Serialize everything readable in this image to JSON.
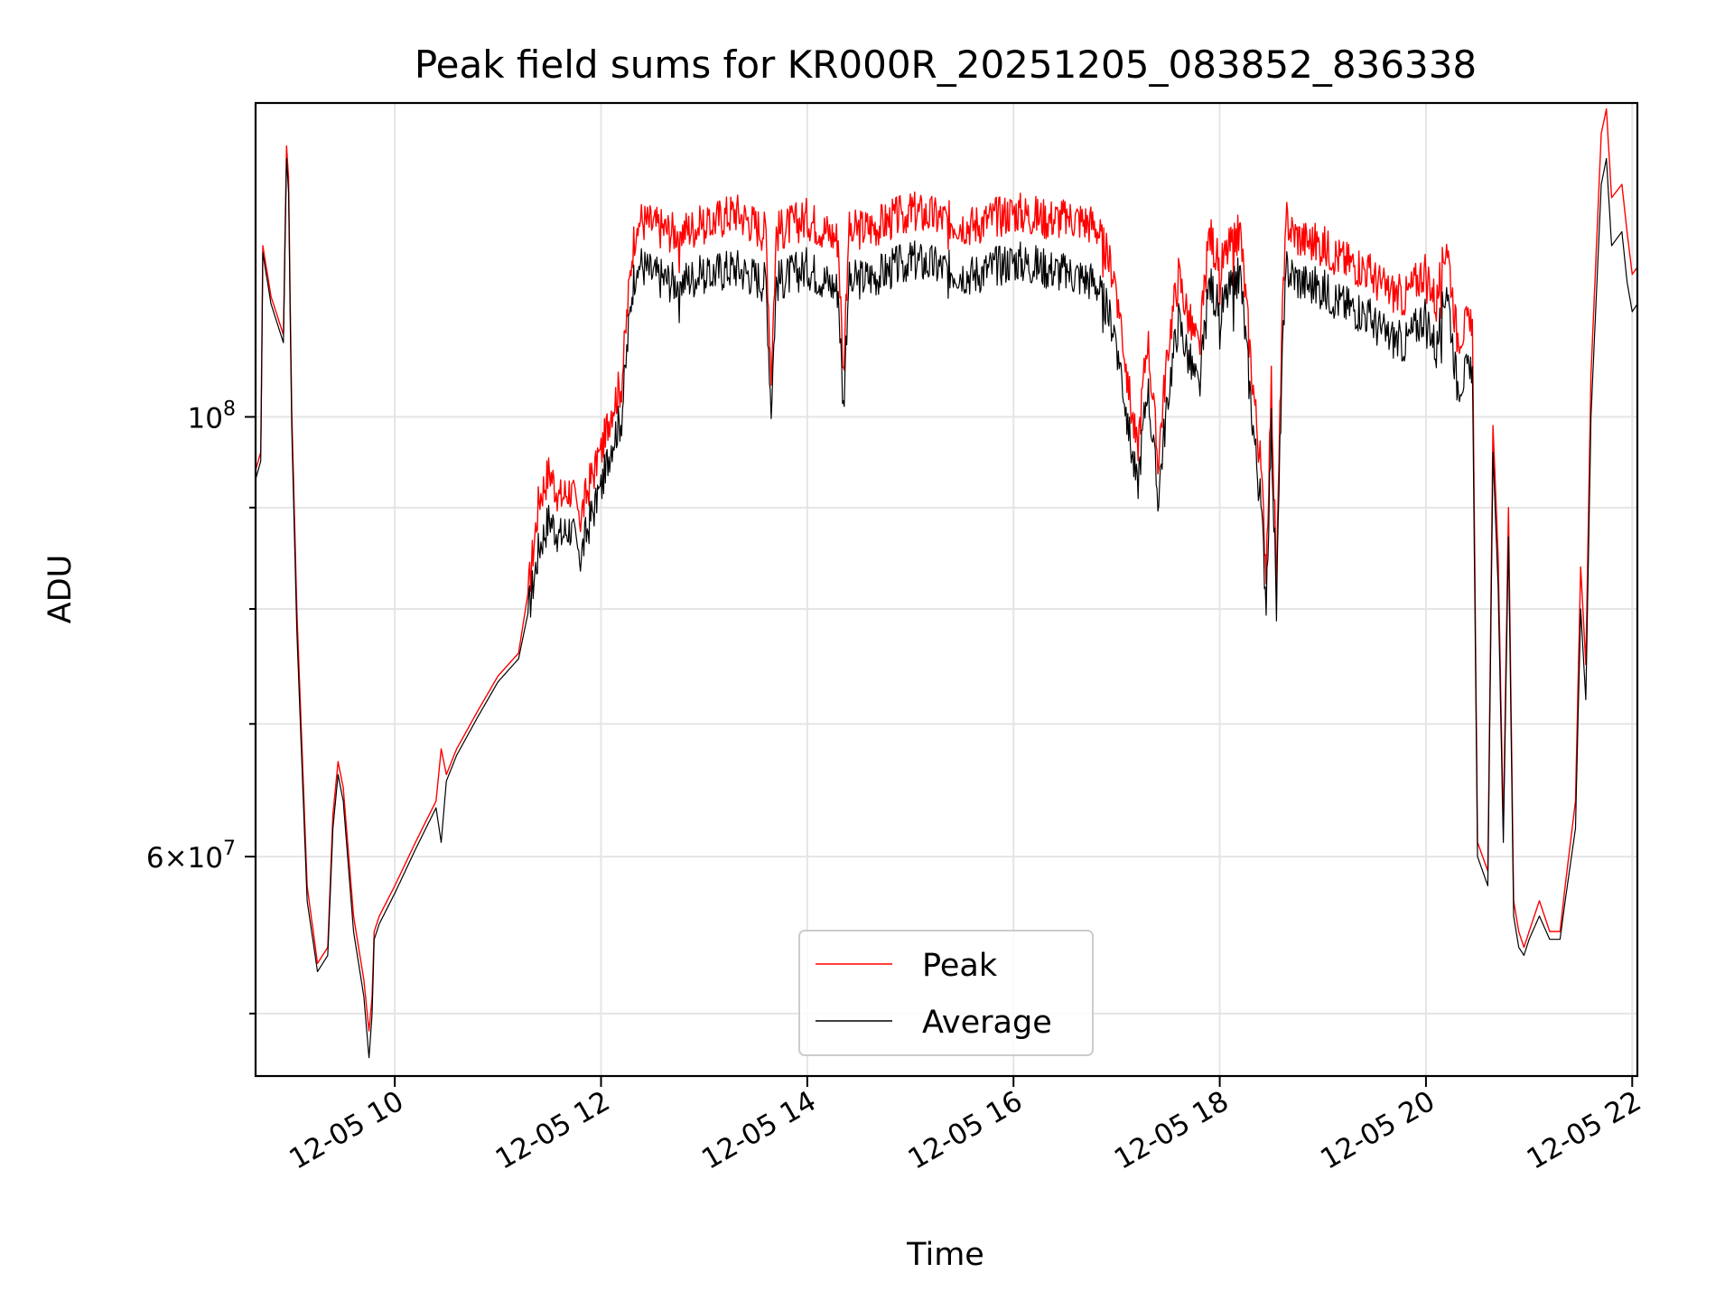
{
  "chart_data": {
    "type": "line",
    "title": "Peak field sums for KR000R_20251205_083852_836338",
    "xlabel": "Time",
    "ylabel": "ADU",
    "yscale": "log",
    "xlim": [
      8.65,
      22.05
    ],
    "ylim": [
      46500000,
      144000000
    ],
    "x_unit": "hours since 2025-12-05 00:00",
    "grid": true,
    "legend_location": "lower center",
    "x_ticks": [
      {
        "value": 10,
        "label": "12-05 10"
      },
      {
        "value": 12,
        "label": "12-05 12"
      },
      {
        "value": 14,
        "label": "12-05 14"
      },
      {
        "value": 16,
        "label": "12-05 16"
      },
      {
        "value": 18,
        "label": "12-05 18"
      },
      {
        "value": 20,
        "label": "12-05 20"
      },
      {
        "value": 22,
        "label": "12-05 22"
      }
    ],
    "y_major_ticks": [
      {
        "value": 60000000,
        "base": "6",
        "exponent": "7",
        "mantissa": true
      },
      {
        "value": 100000000,
        "base": "10",
        "exponent": "8",
        "mantissa": false
      }
    ],
    "y_minor_ticks": [
      50000000,
      70000000,
      80000000,
      90000000,
      200000000
    ],
    "series": [
      {
        "name": "Peak",
        "color": "#ff0000",
        "x": [
          8.65,
          8.7,
          8.72,
          8.8,
          8.92,
          8.95,
          8.97,
          9.0,
          9.05,
          9.15,
          9.25,
          9.35,
          9.4,
          9.45,
          9.5,
          9.6,
          9.7,
          9.75,
          9.78,
          9.8,
          9.85,
          10.0,
          10.2,
          10.4,
          10.45,
          10.5,
          10.6,
          10.8,
          11.0,
          11.2,
          11.3,
          11.4,
          11.5,
          11.6,
          11.7,
          11.8,
          11.9,
          12.0,
          12.1,
          12.2,
          12.3,
          12.35,
          12.5,
          12.7,
          13.0,
          13.3,
          13.6,
          13.65,
          13.7,
          14.0,
          14.3,
          14.35,
          14.4,
          14.7,
          15.0,
          15.3,
          15.6,
          16.0,
          16.3,
          16.6,
          16.8,
          17.0,
          17.1,
          17.2,
          17.3,
          17.4,
          17.5,
          17.6,
          17.7,
          17.8,
          17.9,
          18.0,
          18.1,
          18.2,
          18.3,
          18.4,
          18.45,
          18.5,
          18.55,
          18.6,
          18.65,
          18.7,
          18.8,
          19.0,
          19.2,
          19.4,
          19.6,
          19.8,
          20.0,
          20.1,
          20.2,
          20.3,
          20.45,
          20.5,
          20.6,
          20.65,
          20.7,
          20.75,
          20.8,
          20.85,
          20.9,
          20.95,
          21.0,
          21.1,
          21.2,
          21.3,
          21.35,
          21.45,
          21.5,
          21.55,
          21.6,
          21.7,
          21.75,
          21.8,
          21.9,
          21.95,
          22.0,
          22.05
        ],
        "values": [
          94000000,
          96000000,
          122000000,
          115000000,
          110000000,
          137000000,
          132000000,
          101000000,
          80000000,
          58000000,
          53000000,
          54000000,
          63000000,
          67000000,
          65000000,
          56000000,
          52000000,
          49000000,
          51000000,
          55000000,
          56000000,
          58000000,
          61000000,
          64000000,
          68000000,
          66000000,
          68000000,
          71000000,
          74000000,
          76000000,
          82000000,
          91000000,
          94000000,
          91000000,
          92000000,
          89000000,
          93000000,
          96000000,
          101000000,
          104000000,
          121000000,
          126000000,
          125000000,
          124000000,
          125000000,
          127000000,
          124000000,
          105000000,
          124000000,
          126000000,
          123000000,
          105000000,
          124000000,
          125000000,
          127000000,
          126000000,
          125000000,
          127000000,
          126000000,
          126000000,
          125000000,
          117000000,
          105000000,
          96000000,
          110000000,
          95000000,
          109000000,
          118000000,
          112000000,
          108000000,
          124000000,
          119000000,
          122000000,
          124000000,
          107000000,
          94000000,
          84000000,
          104000000,
          82000000,
          110000000,
          126000000,
          124000000,
          123000000,
          122000000,
          120000000,
          119000000,
          116000000,
          115000000,
          119000000,
          114000000,
          123000000,
          110000000,
          112000000,
          61000000,
          59000000,
          99000000,
          85000000,
          62000000,
          90000000,
          57000000,
          55000000,
          54000000,
          55000000,
          57000000,
          55000000,
          55000000,
          58000000,
          64000000,
          84000000,
          75000000,
          105000000,
          139000000,
          143000000,
          129000000,
          131000000,
          124000000,
          118000000,
          119000000
        ]
      },
      {
        "name": "Average",
        "color": "#000000",
        "x": [
          8.65,
          8.7,
          8.72,
          8.8,
          8.92,
          8.95,
          8.97,
          9.0,
          9.05,
          9.15,
          9.25,
          9.35,
          9.4,
          9.45,
          9.5,
          9.6,
          9.7,
          9.75,
          9.78,
          9.8,
          9.85,
          10.0,
          10.2,
          10.4,
          10.45,
          10.5,
          10.6,
          10.8,
          11.0,
          11.2,
          11.3,
          11.4,
          11.5,
          11.6,
          11.7,
          11.8,
          11.9,
          12.0,
          12.1,
          12.2,
          12.3,
          12.35,
          12.5,
          12.7,
          13.0,
          13.3,
          13.6,
          13.65,
          13.7,
          14.0,
          14.3,
          14.35,
          14.4,
          14.7,
          15.0,
          15.3,
          15.6,
          16.0,
          16.3,
          16.6,
          16.8,
          17.0,
          17.1,
          17.2,
          17.3,
          17.4,
          17.5,
          17.6,
          17.7,
          17.8,
          17.9,
          18.0,
          18.1,
          18.2,
          18.3,
          18.4,
          18.45,
          18.5,
          18.55,
          18.6,
          18.65,
          18.7,
          18.8,
          19.0,
          19.2,
          19.4,
          19.6,
          19.8,
          20.0,
          20.1,
          20.2,
          20.3,
          20.45,
          20.5,
          20.6,
          20.65,
          20.7,
          20.75,
          20.8,
          20.85,
          20.9,
          20.95,
          21.0,
          21.1,
          21.2,
          21.3,
          21.35,
          21.45,
          21.5,
          21.55,
          21.6,
          21.7,
          21.75,
          21.8,
          21.9,
          21.95,
          22.0,
          22.05
        ],
        "values": [
          93000000,
          95000000,
          121000000,
          114000000,
          109000000,
          135000000,
          130000000,
          99000000,
          78000000,
          57000000,
          52500000,
          53500000,
          62000000,
          66000000,
          64000000,
          55000000,
          51000000,
          47500000,
          50000000,
          54500000,
          55500000,
          57500000,
          60500000,
          63500000,
          61000000,
          65500000,
          67500000,
          70500000,
          73500000,
          75500000,
          80000000,
          86000000,
          89000000,
          87000000,
          88000000,
          85000000,
          89000000,
          92000000,
          97000000,
          100000000,
          116000000,
          120000000,
          118000000,
          117000000,
          118000000,
          119000000,
          117000000,
          101000000,
          117000000,
          119000000,
          116000000,
          101000000,
          117000000,
          118000000,
          120000000,
          119000000,
          118000000,
          120000000,
          119000000,
          118000000,
          117000000,
          110000000,
          100000000,
          92000000,
          104000000,
          91000000,
          103000000,
          112000000,
          107000000,
          103000000,
          117000000,
          113000000,
          116000000,
          118000000,
          102000000,
          90000000,
          81000000,
          99000000,
          80000000,
          105000000,
          119000000,
          118000000,
          117000000,
          116000000,
          114000000,
          113000000,
          110000000,
          109000000,
          113000000,
          108000000,
          117000000,
          104000000,
          106000000,
          60000000,
          58000000,
          96000000,
          82000000,
          61000000,
          87000000,
          56000000,
          54000000,
          53500000,
          54500000,
          56000000,
          54500000,
          54500000,
          57000000,
          62000000,
          80000000,
          72000000,
          100000000,
          131000000,
          135000000,
          122000000,
          124000000,
          117000000,
          113000000,
          114000000
        ]
      }
    ]
  }
}
